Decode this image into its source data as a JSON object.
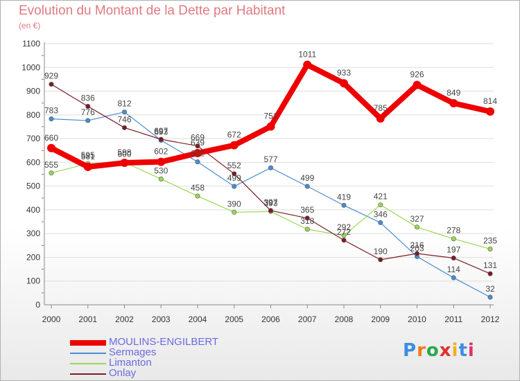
{
  "header": {
    "title": "Evolution du Montant de la Dette par Habitant",
    "unit": "(en €)"
  },
  "logo": {
    "text": "Proxiti",
    "letter_colors": [
      "#3b8ee0",
      "#f07a1a",
      "#2aa84a",
      "#e0302a",
      "#f0b020",
      "#3b8ee0",
      "#e03070"
    ]
  },
  "chart_data": {
    "type": "line",
    "title": "Evolution du Montant de la Dette par Habitant",
    "subtitle": "(en €)",
    "xlabel": "",
    "ylabel": "",
    "x": [
      "2000",
      "2001",
      "2002",
      "2003",
      "2004",
      "2005",
      "2006",
      "2007",
      "2008",
      "2009",
      "2010",
      "2011",
      "2012"
    ],
    "ylim": [
      0,
      1100
    ],
    "yticks": [
      "0",
      "100",
      "200",
      "300",
      "400",
      "500",
      "600",
      "700",
      "800",
      "900",
      "1000",
      "1100"
    ],
    "grid": "horizontal",
    "legend": "bottom-left",
    "series": [
      {
        "name": "Sermages",
        "color": "#4a8ccf",
        "width": 1.2,
        "values": [
          783,
          776,
          812,
          693,
          602,
          499,
          577,
          499,
          419,
          346,
          203,
          114,
          32
        ]
      },
      {
        "name": "Limanton",
        "color": "#99d855",
        "width": 1.2,
        "values": [
          555,
          595,
          600,
          530,
          458,
          390,
          393,
          318,
          292,
          421,
          327,
          278,
          235
        ]
      },
      {
        "name": "Onlay",
        "color": "#7a1c24",
        "width": 1.2,
        "values": [
          929,
          836,
          746,
          697,
          669,
          552,
          397,
          365,
          272,
          190,
          216,
          197,
          131
        ]
      },
      {
        "name": "MOULINS-ENGILBERT",
        "color": "#ee0000",
        "width": 8,
        "values": [
          660,
          581,
          598,
          602,
          639,
          672,
          751,
          1011,
          933,
          785,
          926,
          849,
          814
        ]
      }
    ],
    "legend_order": [
      "MOULINS-ENGILBERT",
      "Sermages",
      "Limanton",
      "Onlay"
    ]
  }
}
